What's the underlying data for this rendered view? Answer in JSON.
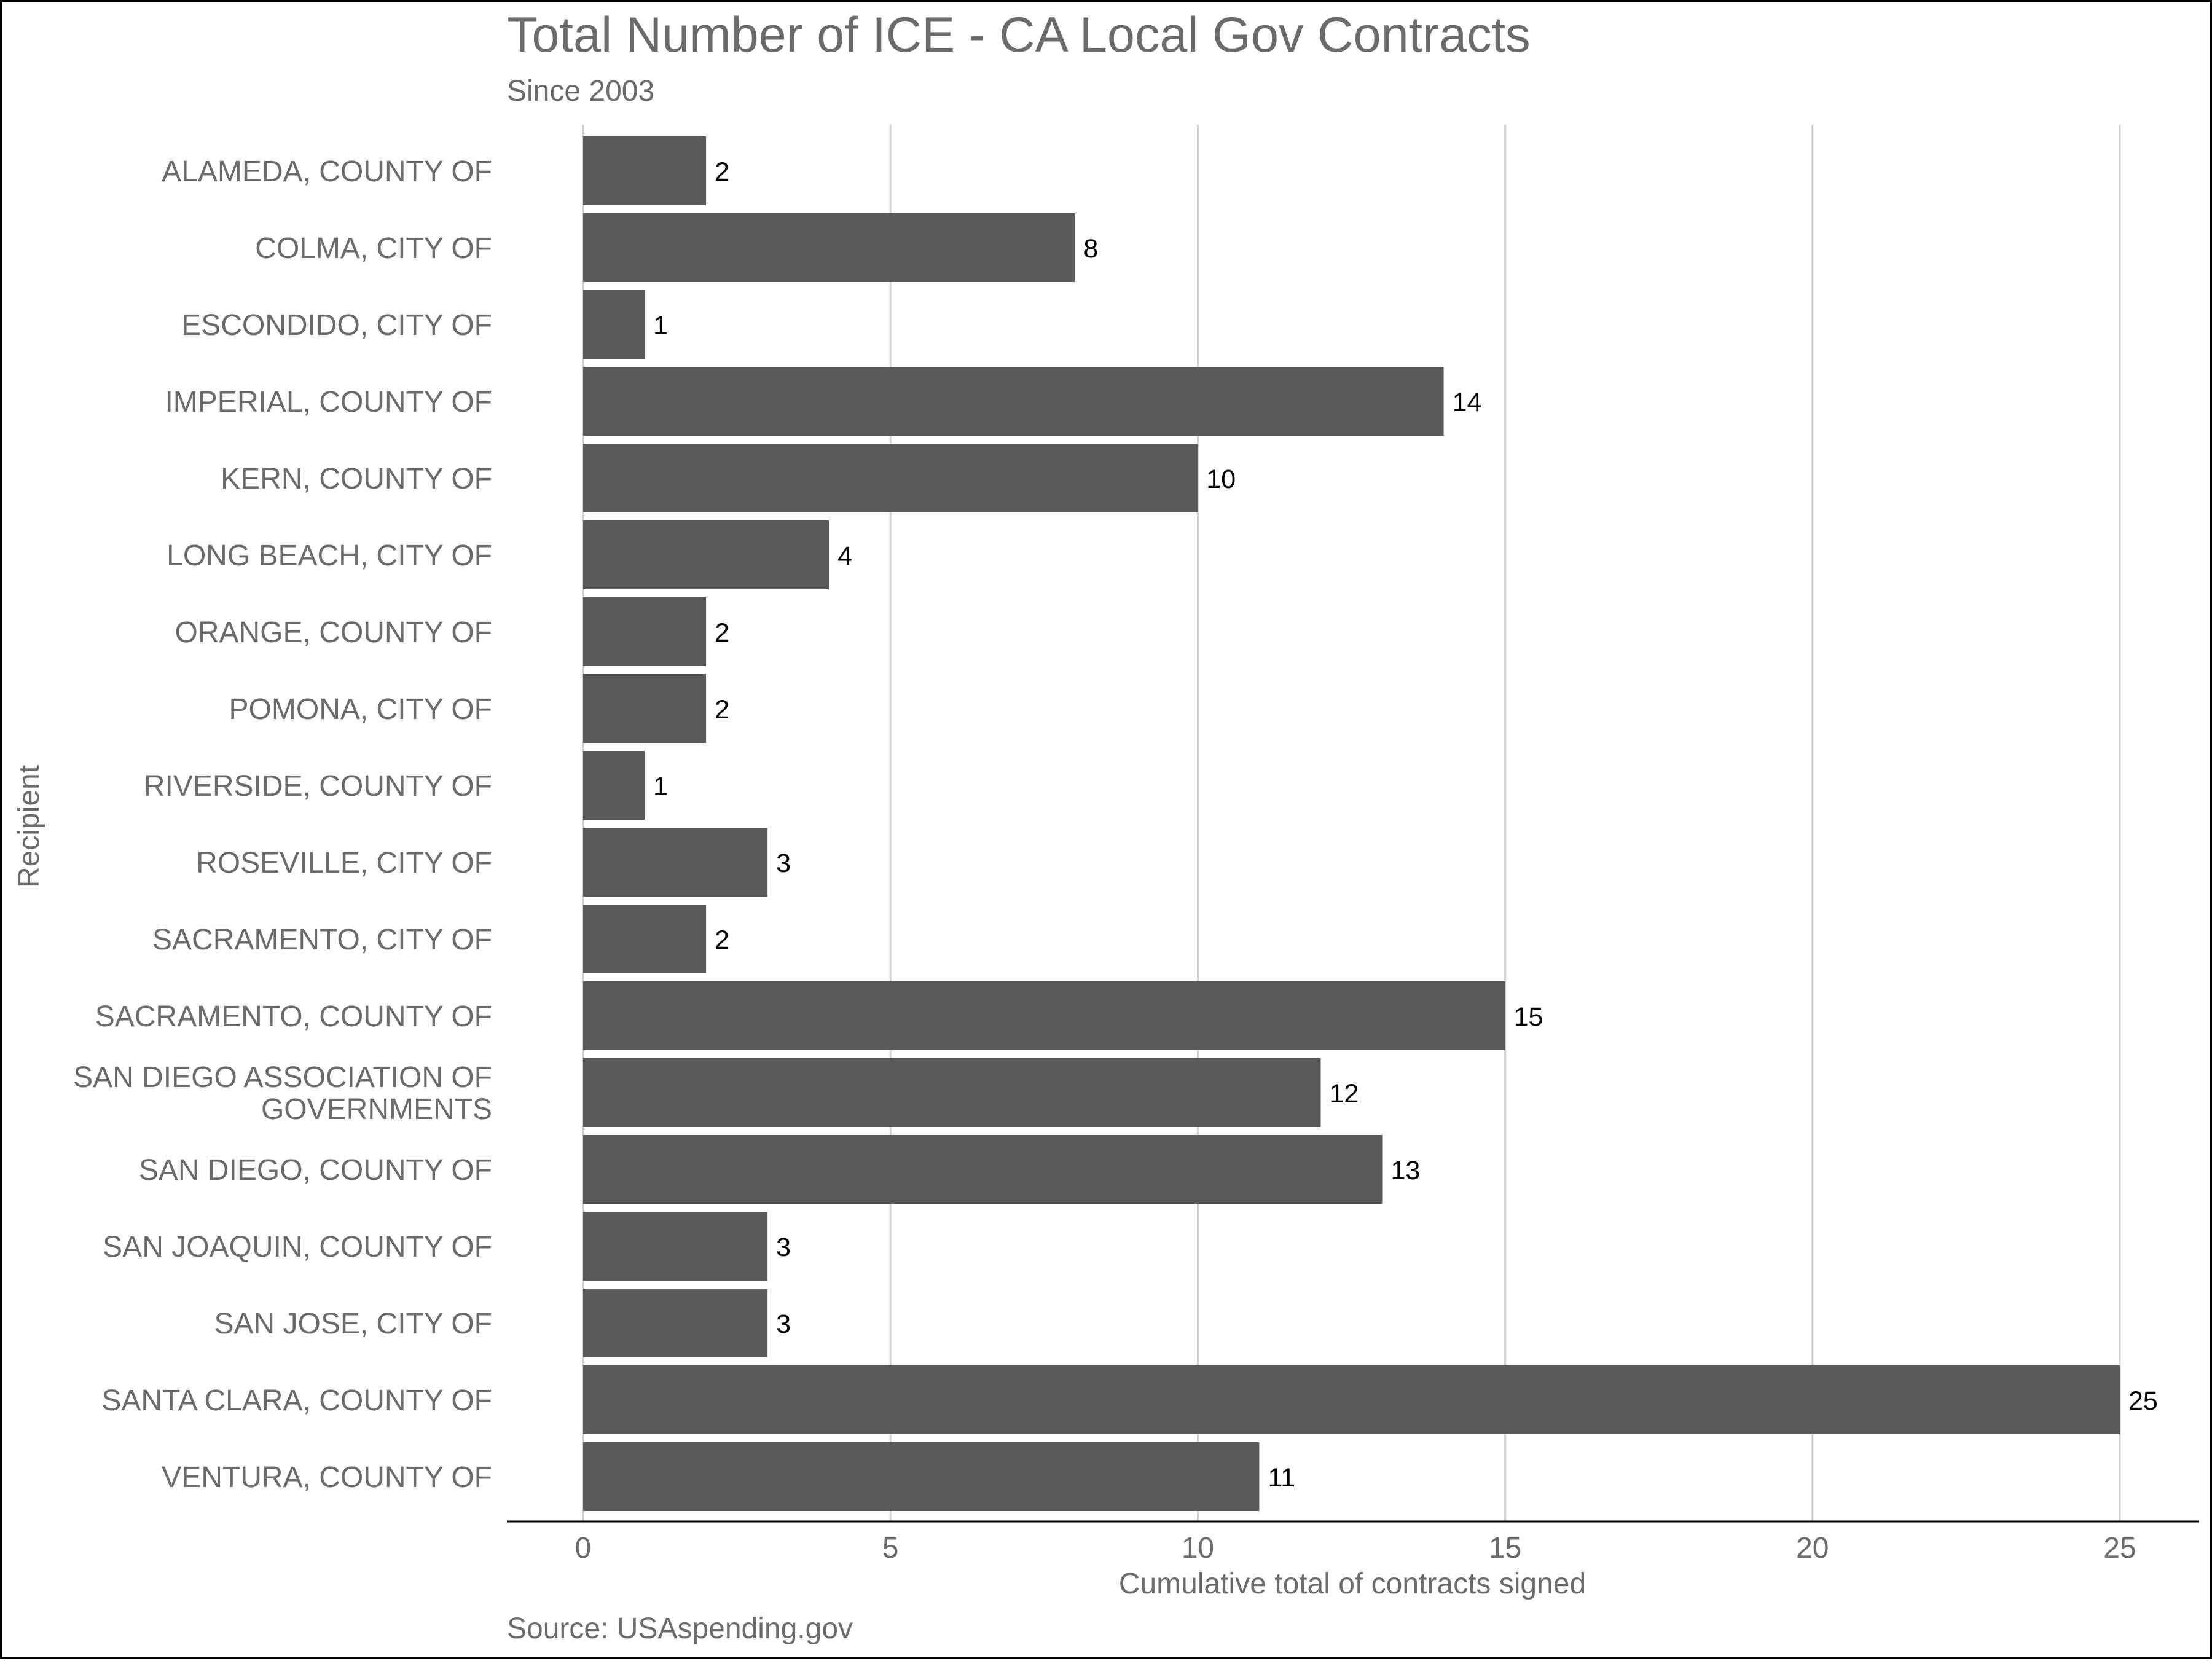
{
  "title": "Total Number of ICE - CA Local Gov Contracts",
  "subtitle": "Since 2003",
  "caption": "Source: USAspending.gov",
  "chart_data": {
    "type": "bar",
    "orientation": "horizontal",
    "title": "Total Number of ICE - CA Local Gov Contracts",
    "subtitle": "Since 2003",
    "xlabel": "Cumulative total of contracts signed",
    "ylabel": "Recipient",
    "categories": [
      "ALAMEDA, COUNTY OF",
      "COLMA, CITY OF",
      "ESCONDIDO, CITY OF",
      "IMPERIAL, COUNTY OF",
      "KERN, COUNTY OF",
      "LONG BEACH, CITY OF",
      "ORANGE, COUNTY OF",
      "POMONA, CITY OF",
      "RIVERSIDE, COUNTY OF",
      "ROSEVILLE, CITY OF",
      "SACRAMENTO, CITY OF",
      "SACRAMENTO, COUNTY OF",
      "SAN DIEGO ASSOCIATION OF GOVERNMENTS",
      "SAN DIEGO, COUNTY OF",
      "SAN JOAQUIN, COUNTY OF",
      "SAN JOSE, CITY OF",
      "SANTA CLARA, COUNTY OF",
      "VENTURA, COUNTY OF"
    ],
    "values": [
      2,
      8,
      1,
      14,
      10,
      4,
      2,
      2,
      1,
      3,
      2,
      15,
      12,
      13,
      3,
      3,
      25,
      11
    ],
    "xlim": [
      0,
      25
    ],
    "xticks": [
      0,
      5,
      10,
      15,
      20,
      25
    ],
    "grid": "vertical",
    "bar_color": "#595959",
    "data_labels": true,
    "caption": "Source: USAspending.gov"
  }
}
